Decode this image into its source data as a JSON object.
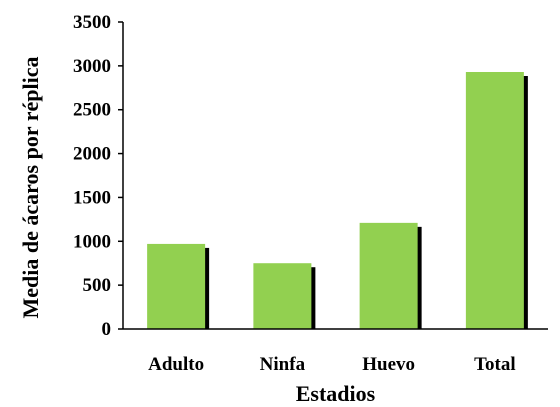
{
  "chart_data": {
    "type": "bar",
    "categories": [
      "Adulto",
      "Ninfa",
      "Huevo",
      "Total"
    ],
    "values": [
      970,
      750,
      1210,
      2930
    ],
    "title": "",
    "xlabel": "Estadios",
    "ylabel": "Media de ácaros por réplica",
    "ylim": [
      0,
      3500
    ],
    "yticks": [
      0,
      500,
      1000,
      1500,
      2000,
      2500,
      3000,
      3500
    ],
    "grid": false,
    "legend": "none",
    "bar_color": "#92D050",
    "shadow_color": "#000000"
  }
}
